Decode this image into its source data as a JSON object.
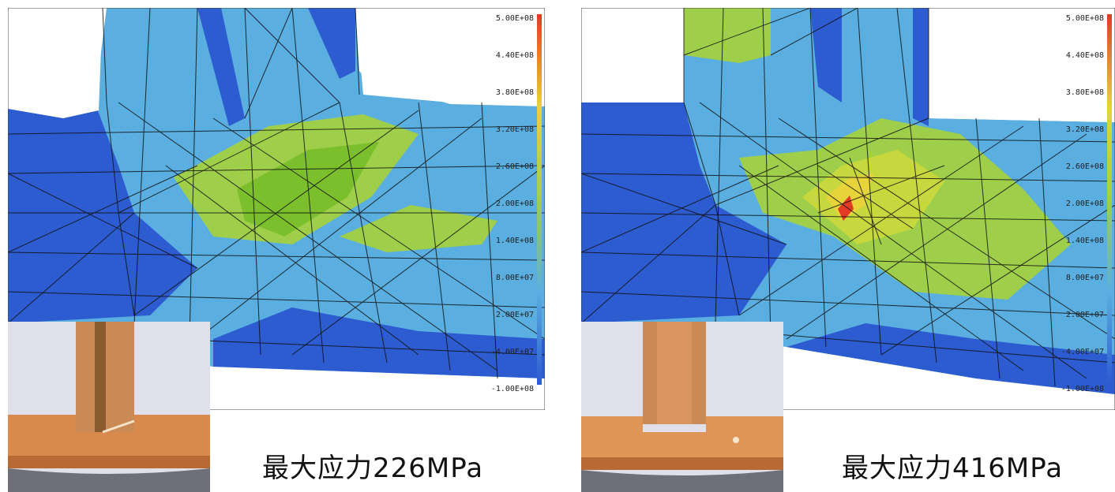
{
  "colors": {
    "dark_blue": "#2d5bd0",
    "light_blue": "#5aaee0",
    "green": "#9fcf4a",
    "dark_green": "#7cbf2c",
    "yellow": "#e6d43a",
    "red": "#e23a24",
    "copper": "#d88a4c"
  },
  "panels": [
    {
      "caption": "最大应力226MPa",
      "legend_ticks": [
        "5.00E+08",
        "4.40E+08",
        "3.80E+08",
        "3.20E+08",
        "2.60E+08",
        "2.00E+08",
        "1.40E+08",
        "8.00E+07",
        "2.00E+07",
        "-4.00E+07",
        "-1.00E+08"
      ]
    },
    {
      "caption": "最大应力416MPa",
      "legend_ticks": [
        "5.00E+08",
        "4.40E+08",
        "3.80E+08",
        "3.20E+08",
        "2.60E+08",
        "2.00E+08",
        "1.40E+08",
        "8.00E+07",
        "2.00E+07",
        "-4.00E+07",
        "-1.00E+08"
      ]
    }
  ]
}
